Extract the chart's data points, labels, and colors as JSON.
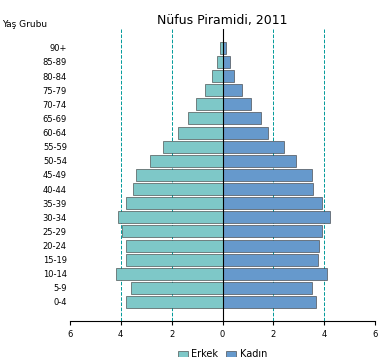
{
  "title": "Nüfus Piramidi, 2011",
  "ylabel": "Yaş Grubu",
  "xlabel_left": "Erkek",
  "xlabel_right": "Kadın",
  "age_groups": [
    "0-4",
    "5-9",
    "10-14",
    "15-19",
    "20-24",
    "25-29",
    "30-34",
    "35-39",
    "40-44",
    "45-49",
    "50-54",
    "55-59",
    "60-64",
    "65-69",
    "70-74",
    "75-79",
    "80-84",
    "85-89",
    "90+"
  ],
  "male": [
    3.8,
    3.6,
    4.2,
    3.8,
    3.8,
    3.95,
    4.1,
    3.8,
    3.5,
    3.4,
    2.85,
    2.35,
    1.75,
    1.35,
    1.05,
    0.7,
    0.4,
    0.2,
    0.1
  ],
  "female": [
    3.65,
    3.5,
    4.1,
    3.75,
    3.8,
    3.9,
    4.2,
    3.9,
    3.55,
    3.5,
    2.9,
    2.4,
    1.8,
    1.5,
    1.1,
    0.75,
    0.45,
    0.3,
    0.15
  ],
  "male_color": "#7EC8C8",
  "female_color": "#6699CC",
  "bar_edge_color": "#333333",
  "grid_color": "#009999",
  "xlim": 6,
  "bg_color": "#ffffff",
  "title_fontsize": 9,
  "tick_fontsize": 6,
  "legend_fontsize": 7
}
